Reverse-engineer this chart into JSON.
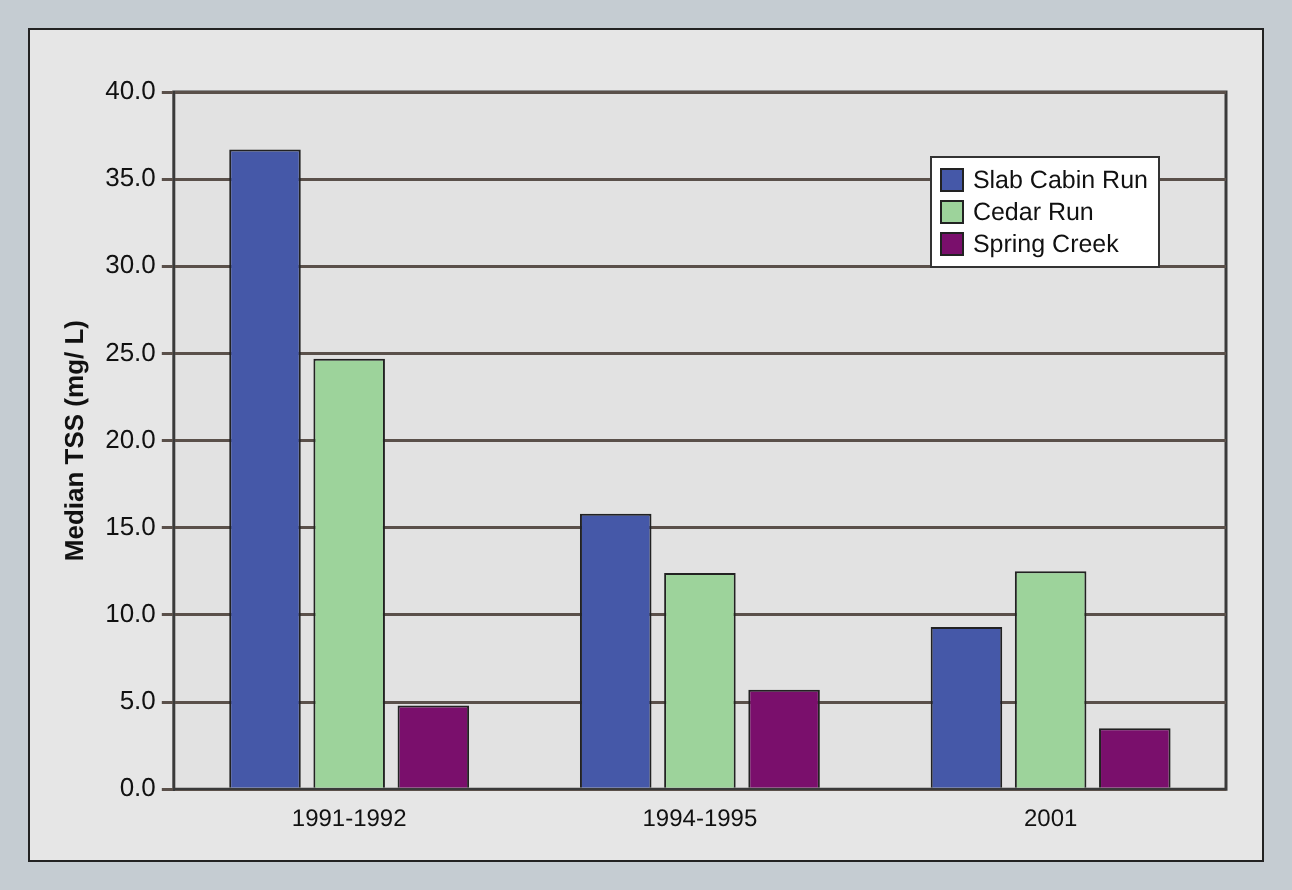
{
  "chart_data": {
    "type": "bar",
    "ylabel": "Median TSS (mg/ L)",
    "categories": [
      "1991-1992",
      "1994-1995",
      "2001"
    ],
    "series": [
      {
        "name": "Slab Cabin Run",
        "color": "#4558a8",
        "values": [
          36.7,
          15.8,
          9.3
        ]
      },
      {
        "name": "Cedar Run",
        "color": "#9dd39b",
        "values": [
          24.7,
          12.4,
          12.5
        ]
      },
      {
        "name": "Spring Creek",
        "color": "#7a0f6c",
        "values": [
          4.8,
          5.7,
          3.5
        ]
      }
    ],
    "ylim": [
      0,
      40
    ],
    "yticks": [
      {
        "value": 0,
        "label": "0.0"
      },
      {
        "value": 5,
        "label": "5.0"
      },
      {
        "value": 10,
        "label": "10.0"
      },
      {
        "value": 15,
        "label": "15.0"
      },
      {
        "value": 20,
        "label": "20.0"
      },
      {
        "value": 25,
        "label": "25.0"
      },
      {
        "value": 30,
        "label": "30.0"
      },
      {
        "value": 35,
        "label": "35.0"
      },
      {
        "value": 40,
        "label": "40.0"
      }
    ],
    "grid": "y",
    "legend": "top right"
  }
}
